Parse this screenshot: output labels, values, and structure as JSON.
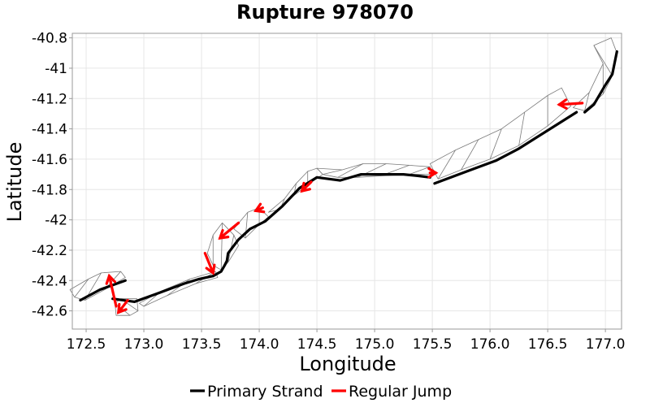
{
  "chart_data": {
    "type": "line",
    "title": "Rupture 978070",
    "xlabel": "Longitude",
    "ylabel": "Latitude",
    "xlim": [
      172.38,
      177.14
    ],
    "ylim": [
      -42.72,
      -40.77
    ],
    "xticks": [
      172.5,
      173.0,
      173.5,
      174.0,
      174.5,
      175.0,
      175.5,
      176.0,
      176.5,
      177.0
    ],
    "yticks": [
      -40.8,
      -41.0,
      -41.2,
      -41.4,
      -41.6,
      -41.8,
      -42.0,
      -42.2,
      -42.4,
      -42.6
    ],
    "grid": true,
    "legend": {
      "placement": "bottom",
      "items": [
        {
          "label": "Primary Strand",
          "color": "#000000"
        },
        {
          "label": "Regular Jump",
          "color": "#ff0000"
        }
      ]
    },
    "series": [
      {
        "name": "Primary Strand",
        "color": "#000000",
        "segments": [
          [
            [
              172.45,
              -42.53
            ],
            [
              172.62,
              -42.46
            ],
            [
              172.84,
              -42.4
            ]
          ],
          [
            [
              172.73,
              -42.52
            ],
            [
              172.92,
              -42.54
            ],
            [
              173.1,
              -42.49
            ],
            [
              173.35,
              -42.42
            ],
            [
              173.48,
              -42.39
            ],
            [
              173.6,
              -42.37
            ],
            [
              173.67,
              -42.34
            ],
            [
              173.7,
              -42.3
            ],
            [
              173.72,
              -42.27
            ],
            [
              173.73,
              -42.22
            ],
            [
              173.82,
              -42.13
            ],
            [
              173.92,
              -42.06
            ],
            [
              174.05,
              -42.01
            ],
            [
              174.2,
              -41.91
            ],
            [
              174.35,
              -41.79
            ],
            [
              174.5,
              -41.72
            ],
            [
              174.7,
              -41.74
            ],
            [
              174.88,
              -41.7
            ],
            [
              175.05,
              -41.7
            ],
            [
              175.25,
              -41.7
            ],
            [
              175.38,
              -41.71
            ],
            [
              175.48,
              -41.72
            ]
          ],
          [
            [
              175.52,
              -41.76
            ],
            [
              175.8,
              -41.68
            ],
            [
              176.05,
              -41.61
            ],
            [
              176.25,
              -41.53
            ],
            [
              176.5,
              -41.41
            ],
            [
              176.75,
              -41.29
            ]
          ],
          [
            [
              176.82,
              -41.29
            ],
            [
              176.9,
              -41.24
            ],
            [
              177.0,
              -41.11
            ],
            [
              177.06,
              -41.04
            ],
            [
              177.1,
              -40.89
            ]
          ]
        ]
      },
      {
        "name": "Regular Jump",
        "color": "#ff0000",
        "arrows": [
          [
            [
              172.76,
              -42.57
            ],
            [
              172.7,
              -42.37
            ]
          ],
          [
            [
              172.86,
              -42.53
            ],
            [
              172.78,
              -42.61
            ]
          ],
          [
            [
              173.53,
              -42.22
            ],
            [
              173.6,
              -42.35
            ]
          ],
          [
            [
              173.82,
              -42.02
            ],
            [
              173.66,
              -42.12
            ]
          ],
          [
            [
              174.03,
              -41.92
            ],
            [
              173.97,
              -41.94
            ]
          ],
          [
            [
              174.45,
              -41.75
            ],
            [
              174.37,
              -41.81
            ]
          ],
          [
            [
              175.48,
              -41.69
            ],
            [
              175.53,
              -41.69
            ]
          ],
          [
            [
              176.8,
              -41.23
            ],
            [
              176.6,
              -41.24
            ]
          ]
        ]
      }
    ],
    "panels": [
      [
        [
          172.36,
          -42.46
        ],
        [
          172.52,
          -42.39
        ],
        [
          172.63,
          -42.35
        ],
        [
          172.8,
          -42.34
        ],
        [
          172.84,
          -42.38
        ],
        [
          172.66,
          -42.46
        ],
        [
          172.49,
          -42.53
        ],
        [
          172.4,
          -42.51
        ]
      ],
      [
        [
          172.76,
          -42.63
        ],
        [
          172.88,
          -42.63
        ],
        [
          172.95,
          -42.6
        ],
        [
          172.94,
          -42.52
        ],
        [
          172.8,
          -42.52
        ],
        [
          172.75,
          -42.55
        ]
      ],
      [
        [
          172.96,
          -42.55
        ],
        [
          173.15,
          -42.47
        ],
        [
          173.4,
          -42.39
        ],
        [
          173.62,
          -42.34
        ],
        [
          173.64,
          -42.38
        ],
        [
          173.45,
          -42.42
        ],
        [
          173.2,
          -42.5
        ],
        [
          173.0,
          -42.57
        ]
      ],
      [
        [
          173.55,
          -42.22
        ],
        [
          173.6,
          -42.1
        ],
        [
          173.68,
          -42.02
        ],
        [
          173.78,
          -42.1
        ],
        [
          173.82,
          -42.17
        ],
        [
          173.73,
          -42.28
        ],
        [
          173.67,
          -42.33
        ],
        [
          173.6,
          -42.3
        ]
      ],
      [
        [
          173.78,
          -42.06
        ],
        [
          173.9,
          -41.95
        ],
        [
          174.0,
          -41.92
        ],
        [
          174.08,
          -41.98
        ],
        [
          174.0,
          -42.03
        ],
        [
          173.88,
          -42.12
        ]
      ],
      [
        [
          174.08,
          -41.95
        ],
        [
          174.22,
          -41.86
        ],
        [
          174.32,
          -41.76
        ],
        [
          174.42,
          -41.68
        ],
        [
          174.5,
          -41.66
        ],
        [
          174.55,
          -41.7
        ],
        [
          174.42,
          -41.77
        ],
        [
          174.3,
          -41.84
        ],
        [
          174.18,
          -41.93
        ]
      ],
      [
        [
          174.5,
          -41.66
        ],
        [
          174.72,
          -41.67
        ],
        [
          174.9,
          -41.63
        ],
        [
          175.1,
          -41.63
        ],
        [
          175.3,
          -41.64
        ],
        [
          175.48,
          -41.65
        ],
        [
          175.5,
          -41.7
        ],
        [
          175.3,
          -41.7
        ],
        [
          175.05,
          -41.71
        ],
        [
          174.85,
          -41.72
        ],
        [
          174.68,
          -41.72
        ],
        [
          174.55,
          -41.7
        ]
      ],
      [
        [
          175.48,
          -41.63
        ],
        [
          175.7,
          -41.54
        ],
        [
          175.9,
          -41.47
        ],
        [
          176.1,
          -41.4
        ],
        [
          176.3,
          -41.29
        ],
        [
          176.5,
          -41.18
        ],
        [
          176.62,
          -41.13
        ],
        [
          176.7,
          -41.25
        ],
        [
          176.5,
          -41.38
        ],
        [
          176.25,
          -41.51
        ],
        [
          176.0,
          -41.6
        ],
        [
          175.75,
          -41.67
        ],
        [
          175.55,
          -41.73
        ]
      ],
      [
        [
          176.72,
          -41.26
        ],
        [
          176.86,
          -41.16
        ],
        [
          176.98,
          -40.97
        ],
        [
          176.9,
          -40.85
        ],
        [
          177.05,
          -40.8
        ],
        [
          177.1,
          -40.9
        ],
        [
          177.06,
          -41.05
        ],
        [
          176.98,
          -41.17
        ],
        [
          176.82,
          -41.28
        ]
      ]
    ]
  }
}
